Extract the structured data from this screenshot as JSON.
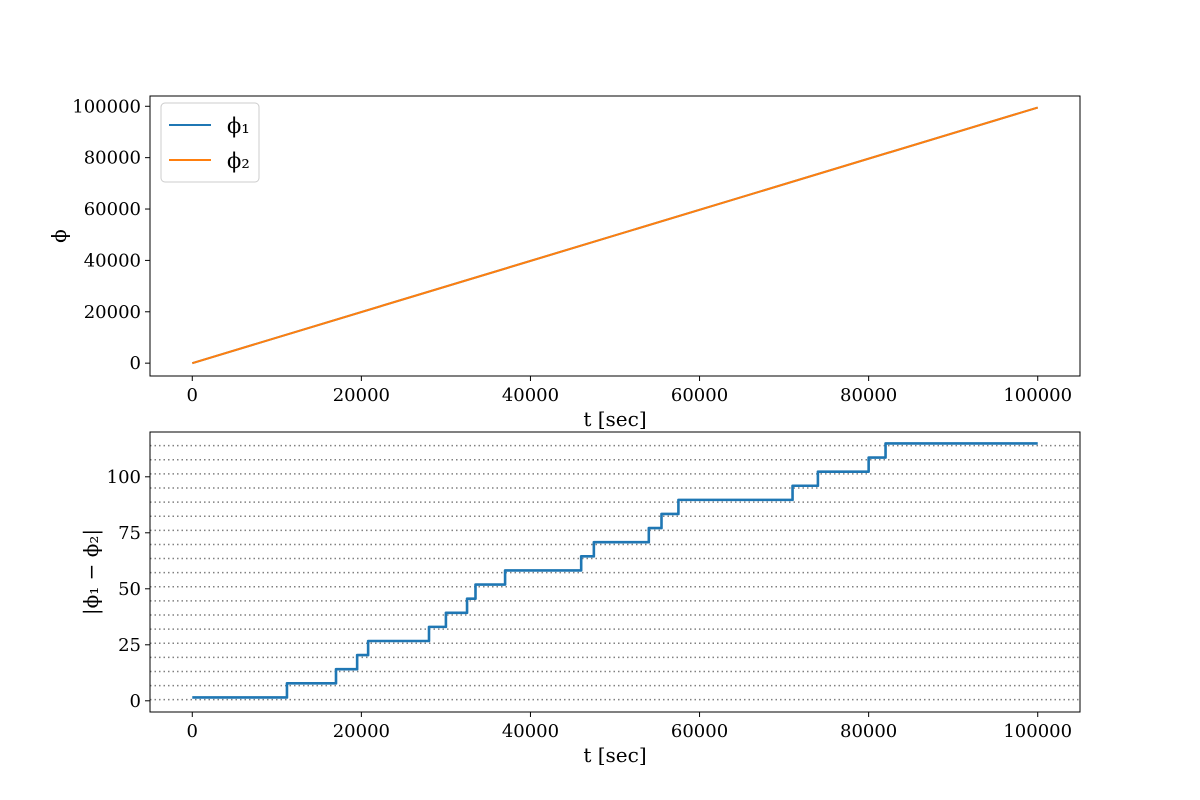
{
  "chart_data": [
    {
      "type": "line",
      "xlabel": "t [sec]",
      "ylabel": "ϕ",
      "xlim": [
        -5000,
        105000
      ],
      "ylim": [
        -5000,
        104000
      ],
      "xticks": [
        0,
        20000,
        40000,
        60000,
        80000,
        100000
      ],
      "yticks": [
        0,
        20000,
        40000,
        60000,
        80000,
        100000
      ],
      "grid": false,
      "legend": "top-left",
      "series": [
        {
          "name": "ϕ₁",
          "color": "#1f77b4",
          "x": [
            0,
            100000
          ],
          "y": [
            0,
            99500
          ]
        },
        {
          "name": "ϕ₂",
          "color": "#ff7f0e",
          "x": [
            0,
            100000
          ],
          "y": [
            0,
            99500
          ]
        }
      ]
    },
    {
      "type": "line",
      "xlabel": "t [sec]",
      "ylabel": "|ϕ₁ − ϕ₂|",
      "xlim": [
        -5000,
        105000
      ],
      "ylim": [
        -5,
        120
      ],
      "xticks": [
        0,
        20000,
        40000,
        60000,
        80000,
        100000
      ],
      "yticks": [
        0,
        25,
        50,
        75,
        100
      ],
      "grid": false,
      "reference_lines": {
        "style": "dotted",
        "color": "#808080",
        "y": [
          0.5,
          6.8,
          13.1,
          19.4,
          25.7,
          32.0,
          38.3,
          44.6,
          50.9,
          57.2,
          63.5,
          69.8,
          76.1,
          82.4,
          88.7,
          95.0,
          101.3,
          107.6,
          113.9
        ]
      },
      "series": [
        {
          "color": "#1f77b4",
          "x": [
            0,
            11200,
            11200,
            17000,
            17000,
            19500,
            19500,
            20800,
            20800,
            28000,
            28000,
            30000,
            30000,
            32500,
            32500,
            33500,
            33500,
            37000,
            37000,
            46000,
            46000,
            47500,
            47500,
            54000,
            54000,
            55500,
            55500,
            57500,
            57500,
            71000,
            71000,
            74000,
            74000,
            80000,
            80000,
            82000,
            82000,
            100000
          ],
          "y": [
            1.5,
            1.5,
            7.8,
            7.8,
            14.1,
            14.1,
            20.4,
            20.4,
            26.7,
            26.7,
            33.0,
            33.0,
            39.3,
            39.3,
            45.6,
            45.6,
            51.9,
            51.9,
            58.2,
            58.2,
            64.5,
            64.5,
            70.8,
            70.8,
            77.1,
            77.1,
            83.4,
            83.4,
            89.7,
            89.7,
            96.0,
            96.0,
            102.3,
            102.3,
            108.6,
            108.6,
            114.9,
            114.9
          ]
        }
      ]
    }
  ]
}
